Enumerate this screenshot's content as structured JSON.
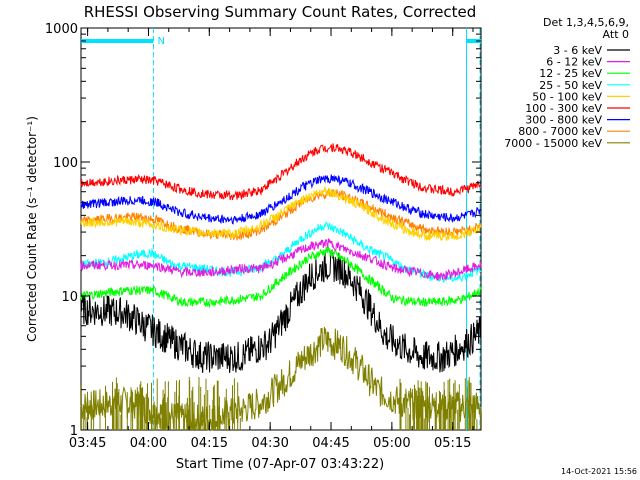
{
  "chart_data": {
    "type": "line",
    "title": "RHESSI Observing Summary Count Rates, Corrected",
    "xlabel": "Start Time (07-Apr-07 03:43:22)",
    "ylabel": "Corrected Count Rate (s⁻¹ detector⁻¹)",
    "yscale": "log",
    "ylim": [
      1,
      1000
    ],
    "xlim": [
      "03:43:22",
      "05:22:00"
    ],
    "x_ticks": [
      "03:45",
      "04:00",
      "04:15",
      "04:30",
      "04:45",
      "05:00",
      "05:15"
    ],
    "y_ticks": [
      "1",
      "10",
      "100",
      "1000"
    ],
    "legend_header": [
      "Det 1,3,4,5,6,9,",
      "Att 0"
    ],
    "legend_position": "right",
    "night_flag_label": "N",
    "stamp": "14-Oct-2021 15:56",
    "series": [
      {
        "name": "3 - 6 keV",
        "color": "#000000",
        "values": [
          [
            0,
            8.0
          ],
          [
            15,
            7.5
          ],
          [
            22,
            6.0
          ],
          [
            32,
            4.5
          ],
          [
            42,
            3.5
          ],
          [
            55,
            3.5
          ],
          [
            65,
            4.5
          ],
          [
            72,
            8.0
          ],
          [
            79,
            14.0
          ],
          [
            85,
            17.0
          ],
          [
            90,
            16.0
          ],
          [
            95,
            12.0
          ],
          [
            100,
            8.0
          ],
          [
            105,
            5.0
          ],
          [
            112,
            4.0
          ],
          [
            118,
            3.5
          ],
          [
            125,
            3.5
          ],
          [
            130,
            4.0
          ],
          [
            136,
            5.0
          ],
          [
            138,
            5.5
          ]
        ]
      },
      {
        "name": "6 - 12 keV",
        "color": "#e020e0",
        "values": [
          [
            0,
            17
          ],
          [
            15,
            17
          ],
          [
            25,
            17
          ],
          [
            35,
            15
          ],
          [
            45,
            15
          ],
          [
            55,
            16
          ],
          [
            62,
            16
          ],
          [
            70,
            19
          ],
          [
            78,
            23
          ],
          [
            85,
            25
          ],
          [
            92,
            22
          ],
          [
            100,
            19
          ],
          [
            108,
            16
          ],
          [
            116,
            15
          ],
          [
            124,
            14
          ],
          [
            130,
            15
          ],
          [
            138,
            17
          ]
        ]
      },
      {
        "name": "12 - 25 keV",
        "color": "#00ff00",
        "values": [
          [
            0,
            10
          ],
          [
            15,
            11
          ],
          [
            25,
            11
          ],
          [
            35,
            9
          ],
          [
            45,
            9
          ],
          [
            55,
            9.5
          ],
          [
            62,
            10
          ],
          [
            70,
            14
          ],
          [
            78,
            19
          ],
          [
            85,
            22
          ],
          [
            92,
            18
          ],
          [
            100,
            13
          ],
          [
            108,
            9.5
          ],
          [
            116,
            9
          ],
          [
            124,
            9
          ],
          [
            132,
            9.5
          ],
          [
            138,
            11
          ]
        ]
      },
      {
        "name": "25 - 50 keV",
        "color": "#00ffff",
        "values": [
          [
            0,
            17
          ],
          [
            10,
            18
          ],
          [
            18,
            20
          ],
          [
            24,
            21
          ],
          [
            32,
            17
          ],
          [
            42,
            16
          ],
          [
            52,
            15
          ],
          [
            60,
            16
          ],
          [
            68,
            19
          ],
          [
            76,
            27
          ],
          [
            84,
            34
          ],
          [
            90,
            30
          ],
          [
            98,
            23
          ],
          [
            106,
            19
          ],
          [
            112,
            16
          ],
          [
            120,
            14
          ],
          [
            130,
            13.5
          ],
          [
            138,
            16
          ]
        ]
      },
      {
        "name": "50 - 100 keV",
        "color": "#ffd000",
        "values": [
          [
            0,
            35
          ],
          [
            15,
            36
          ],
          [
            22,
            35
          ],
          [
            30,
            32
          ],
          [
            40,
            30
          ],
          [
            52,
            29
          ],
          [
            60,
            32
          ],
          [
            68,
            40
          ],
          [
            76,
            52
          ],
          [
            84,
            62
          ],
          [
            90,
            55
          ],
          [
            98,
            45
          ],
          [
            106,
            36
          ],
          [
            112,
            31
          ],
          [
            120,
            28
          ],
          [
            130,
            28
          ],
          [
            138,
            32
          ]
        ]
      },
      {
        "name": "100 - 300 keV",
        "color": "#ff0000",
        "values": [
          [
            0,
            70
          ],
          [
            10,
            72
          ],
          [
            20,
            74
          ],
          [
            26,
            72
          ],
          [
            34,
            63
          ],
          [
            44,
            57
          ],
          [
            54,
            56
          ],
          [
            62,
            62
          ],
          [
            70,
            82
          ],
          [
            76,
            105
          ],
          [
            82,
            125
          ],
          [
            87,
            130
          ],
          [
            92,
            120
          ],
          [
            98,
            105
          ],
          [
            106,
            85
          ],
          [
            114,
            70
          ],
          [
            120,
            63
          ],
          [
            128,
            60
          ],
          [
            134,
            64
          ],
          [
            138,
            70
          ]
        ]
      },
      {
        "name": "300 - 800 keV",
        "color": "#0000ff",
        "values": [
          [
            0,
            48
          ],
          [
            10,
            50
          ],
          [
            20,
            52
          ],
          [
            26,
            50
          ],
          [
            34,
            42
          ],
          [
            44,
            38
          ],
          [
            54,
            37
          ],
          [
            62,
            41
          ],
          [
            70,
            52
          ],
          [
            76,
            64
          ],
          [
            82,
            73
          ],
          [
            87,
            76
          ],
          [
            92,
            70
          ],
          [
            98,
            62
          ],
          [
            106,
            52
          ],
          [
            114,
            44
          ],
          [
            120,
            40
          ],
          [
            128,
            38
          ],
          [
            134,
            40
          ],
          [
            138,
            44
          ]
        ]
      },
      {
        "name": "800 - 7000 keV",
        "color": "#ff8000",
        "values": [
          [
            0,
            36
          ],
          [
            10,
            38
          ],
          [
            20,
            39
          ],
          [
            26,
            37
          ],
          [
            34,
            32
          ],
          [
            44,
            29
          ],
          [
            54,
            28
          ],
          [
            62,
            31
          ],
          [
            70,
            40
          ],
          [
            76,
            50
          ],
          [
            82,
            57
          ],
          [
            87,
            59
          ],
          [
            92,
            55
          ],
          [
            98,
            48
          ],
          [
            106,
            40
          ],
          [
            114,
            34
          ],
          [
            120,
            31
          ],
          [
            128,
            30
          ],
          [
            134,
            31
          ],
          [
            138,
            34
          ]
        ]
      },
      {
        "name": "7000 - 15000 keV",
        "color": "#808000",
        "values": [
          [
            0,
            1.5
          ],
          [
            15,
            1.6
          ],
          [
            25,
            1.4
          ],
          [
            35,
            1.2
          ],
          [
            45,
            1.2
          ],
          [
            55,
            1.4
          ],
          [
            62,
            1.6
          ],
          [
            70,
            2.3
          ],
          [
            76,
            3.3
          ],
          [
            84,
            4.7
          ],
          [
            90,
            4.2
          ],
          [
            96,
            3.0
          ],
          [
            102,
            2.0
          ],
          [
            110,
            1.6
          ],
          [
            120,
            1.5
          ],
          [
            130,
            1.5
          ],
          [
            138,
            1.5
          ]
        ]
      }
    ],
    "cyan_flag_segments": [
      [
        0,
        25
      ],
      [
        133,
        138
      ]
    ],
    "cyan_dashed_lines": [
      25,
      138
    ],
    "cyan_solid_lines": [
      0,
      133
    ]
  }
}
